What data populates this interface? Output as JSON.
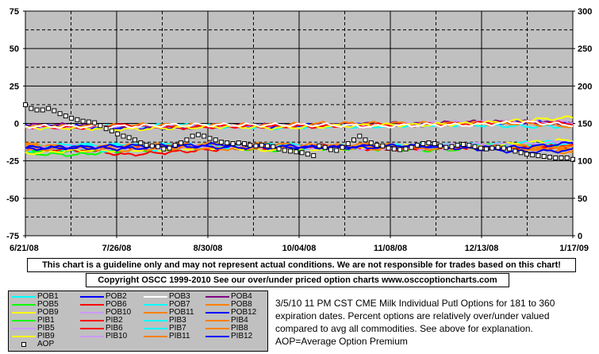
{
  "chart_data": {
    "type": "line",
    "y_left": {
      "min": -75,
      "max": 75,
      "ticks": [
        75,
        50,
        25,
        0,
        -25,
        -50,
        -75
      ]
    },
    "y_right": {
      "min": 0,
      "max": 300,
      "ticks": [
        300,
        250,
        200,
        150,
        100,
        50,
        0
      ]
    },
    "x_tick_labels": [
      "6/21/08",
      "7/26/08",
      "8/30/08",
      "10/04/08",
      "11/08/08",
      "12/13/08",
      "1/17/09"
    ],
    "n_points": 150,
    "series": [
      {
        "name": "POB1",
        "color": "#00ffff",
        "values": [
          -3,
          -2,
          -2,
          -1,
          -2,
          -3,
          -2,
          -2,
          -1,
          -1,
          -2,
          -2
        ]
      },
      {
        "name": "POB2",
        "color": "#0000ff",
        "values": [
          -2,
          -2,
          -3,
          -3,
          -2,
          -2,
          -1,
          -1,
          -1,
          0,
          1,
          0
        ]
      },
      {
        "name": "POB3",
        "color": "#ffffff",
        "values": [
          -2,
          -2,
          -2,
          -1,
          -1,
          -1,
          -1,
          -2,
          -1,
          -1,
          1,
          -1
        ]
      },
      {
        "name": "POB4",
        "color": "#800080",
        "values": [
          -1,
          -1,
          -2,
          -2,
          -1,
          -1,
          -1,
          0,
          0,
          1,
          1,
          0
        ]
      },
      {
        "name": "POB5",
        "color": "#00ff00",
        "values": [
          -20,
          -21,
          -18,
          -17,
          -16,
          -18,
          -16,
          -17,
          -18,
          -17,
          -14,
          -13
        ]
      },
      {
        "name": "POB6",
        "color": "#ff0000",
        "values": [
          -17,
          -17,
          -21,
          -19,
          -17,
          -16,
          -16,
          -17,
          -17,
          -15,
          -15,
          -17
        ]
      },
      {
        "name": "POB7",
        "color": "#00ffff",
        "values": [
          -18,
          -18,
          -18,
          -17,
          -14,
          -16,
          -17,
          -15,
          -16,
          -15,
          -14,
          -12
        ]
      },
      {
        "name": "POB8",
        "color": "#ff8000",
        "values": [
          -14,
          -16,
          -15,
          -16,
          -14,
          -14,
          -16,
          -14,
          -16,
          -15,
          -16,
          -20
        ]
      },
      {
        "name": "POB9",
        "color": "#ffff00",
        "values": [
          -3,
          -3,
          -4,
          -3,
          -2,
          -3,
          -2,
          -1,
          -1,
          0,
          2,
          4
        ]
      },
      {
        "name": "POB10",
        "color": "#cc99ff",
        "values": [
          -3,
          -3,
          -2,
          -2,
          -2,
          -2,
          -1,
          -1,
          0,
          1,
          1,
          1
        ]
      },
      {
        "name": "POB11",
        "color": "#ff8000",
        "values": [
          -2,
          -2,
          -1,
          -1,
          -1,
          -1,
          0,
          0,
          0,
          0,
          0,
          -2
        ]
      },
      {
        "name": "POB12",
        "color": "#0000ff",
        "values": [
          -16,
          -16,
          -15,
          -15,
          -14,
          -15,
          -16,
          -15,
          -15,
          -17,
          -19,
          -18
        ]
      },
      {
        "name": "PIB1",
        "color": "#00ff00",
        "values": [
          -18,
          -18,
          -17,
          -15,
          -14,
          -15,
          -17,
          -16,
          -15,
          -15,
          -14,
          -15
        ]
      },
      {
        "name": "PIB2",
        "color": "#ff0000",
        "values": [
          -2,
          -3,
          -1,
          -3,
          -2,
          -2,
          -2,
          -1,
          -1,
          0,
          1,
          0
        ]
      },
      {
        "name": "PIB3",
        "color": "#00ffff",
        "values": [
          -16,
          -16,
          -14,
          -16,
          -15,
          -16,
          -16,
          -16,
          -14,
          -15,
          -13,
          -12
        ]
      },
      {
        "name": "PIB4",
        "color": "#ff8000",
        "values": [
          -16,
          -17,
          -16,
          -17,
          -16,
          -16,
          -15,
          -17,
          -16,
          -17,
          -16,
          -15
        ]
      },
      {
        "name": "PIB5",
        "color": "#cc99ff",
        "values": [
          -17,
          -15,
          -17,
          -15,
          -15,
          -15,
          -17,
          -15,
          -17,
          -16,
          -15,
          -12
        ]
      },
      {
        "name": "PIB6",
        "color": "#ff0000",
        "values": [
          -16,
          -18,
          -16,
          -15,
          -16,
          -16,
          -15,
          -17,
          -16,
          -16,
          -16,
          -14
        ]
      },
      {
        "name": "PIB7",
        "color": "#00ffff",
        "values": [
          -16,
          -14,
          -15,
          -14,
          -16,
          -14,
          -15,
          -15,
          -16,
          -14,
          -15,
          -13
        ]
      },
      {
        "name": "PIB8",
        "color": "#ff8000",
        "values": [
          -14,
          -16,
          -15,
          -14,
          -14,
          -14,
          -15,
          -14,
          -16,
          -15,
          -17,
          -18
        ]
      },
      {
        "name": "PIB9",
        "color": "#ffff00",
        "values": [
          -20,
          -18,
          -18,
          -17,
          -16,
          -18,
          -17,
          -16,
          -15,
          -16,
          -13,
          -11
        ]
      },
      {
        "name": "PIB10",
        "color": "#cc99ff",
        "values": [
          -17,
          -16,
          -17,
          -16,
          -15,
          -16,
          -16,
          -17,
          -15,
          -14,
          -14,
          -12
        ]
      },
      {
        "name": "PIB11",
        "color": "#ff8000",
        "values": [
          -18,
          -16,
          -18,
          -16,
          -17,
          -16,
          -15,
          -16,
          -17,
          -16,
          -15,
          -16
        ]
      },
      {
        "name": "PIB12",
        "color": "#0000ff",
        "values": [
          -17,
          -16,
          -17,
          -15,
          -16,
          -16,
          -16,
          -16,
          -15,
          -16,
          -16,
          -13
        ]
      }
    ],
    "aop": {
      "name": "AOP",
      "axis": "right",
      "values": [
        175,
        170,
        168,
        168,
        170,
        167,
        163,
        160,
        157,
        155,
        153,
        152,
        151,
        147,
        143,
        140,
        136,
        133,
        131,
        128,
        124,
        121,
        120,
        119,
        116,
        117,
        121,
        124,
        128,
        133,
        135,
        133,
        130,
        128,
        125,
        124,
        123,
        124,
        123,
        121,
        120,
        121,
        120,
        119,
        116,
        114,
        113,
        112,
        111,
        109,
        107
      ]
    },
    "aop_tail": [
      120,
      118,
      115,
      114,
      118,
      123,
      128,
      133,
      128,
      124,
      121,
      120,
      117,
      116,
      115,
      116,
      118,
      121,
      123,
      124,
      123,
      120,
      118,
      119,
      121,
      122,
      121,
      119,
      117,
      116,
      117,
      118,
      117,
      116,
      113,
      111,
      109,
      108,
      107,
      106,
      105,
      104,
      104,
      104,
      102
    ]
  },
  "disclaimer": "This chart is a guideline only and may not represent actual conditions. We are not responsible for trades based on this chart!",
  "copyright": "Copyright OSCC 1999-2010 See our over/under priced option charts www.osccoptioncharts.com",
  "description": [
    "3/5/10 11 PM CST CME Milk Individual Putl Options for 181 to 360",
    "expiration dates. Percent options are relatively over/under valued",
    "compared to avg all commodities. See above for explanation.",
    "AOP=Average Option Premium"
  ],
  "legend": [
    {
      "name": "POB1",
      "color": "#00ffff"
    },
    {
      "name": "POB2",
      "color": "#0000ff"
    },
    {
      "name": "POB3",
      "color": "#ffffff"
    },
    {
      "name": "POB4",
      "color": "#800080"
    },
    {
      "name": "POB5",
      "color": "#00ff00"
    },
    {
      "name": "POB6",
      "color": "#ff0000"
    },
    {
      "name": "POB7",
      "color": "#00ffff"
    },
    {
      "name": "POB8",
      "color": "#ff8000"
    },
    {
      "name": "POB9",
      "color": "#ffff00"
    },
    {
      "name": "POB10",
      "color": "#cc99ff"
    },
    {
      "name": "POB11",
      "color": "#ff8000"
    },
    {
      "name": "POB12",
      "color": "#0000ff"
    },
    {
      "name": "PIB1",
      "color": "#00ff00"
    },
    {
      "name": "PIB2",
      "color": "#ff0000"
    },
    {
      "name": "PIB3",
      "color": "#00ffff"
    },
    {
      "name": "PIB4",
      "color": "#ff8000"
    },
    {
      "name": "PIB5",
      "color": "#cc99ff"
    },
    {
      "name": "PIB6",
      "color": "#ff0000"
    },
    {
      "name": "PIB7",
      "color": "#00ffff"
    },
    {
      "name": "PIB8",
      "color": "#ff8000"
    },
    {
      "name": "PIB9",
      "color": "#ffff00"
    },
    {
      "name": "PIB10",
      "color": "#cc99ff"
    },
    {
      "name": "PIB11",
      "color": "#ff8000"
    },
    {
      "name": "PIB12",
      "color": "#0000ff"
    },
    {
      "name": "AOP",
      "color": "#000000",
      "marker": "square"
    }
  ],
  "colors": {
    "plot_bg": "#c0c0c0",
    "legend_bg": "#c0c0c0"
  }
}
